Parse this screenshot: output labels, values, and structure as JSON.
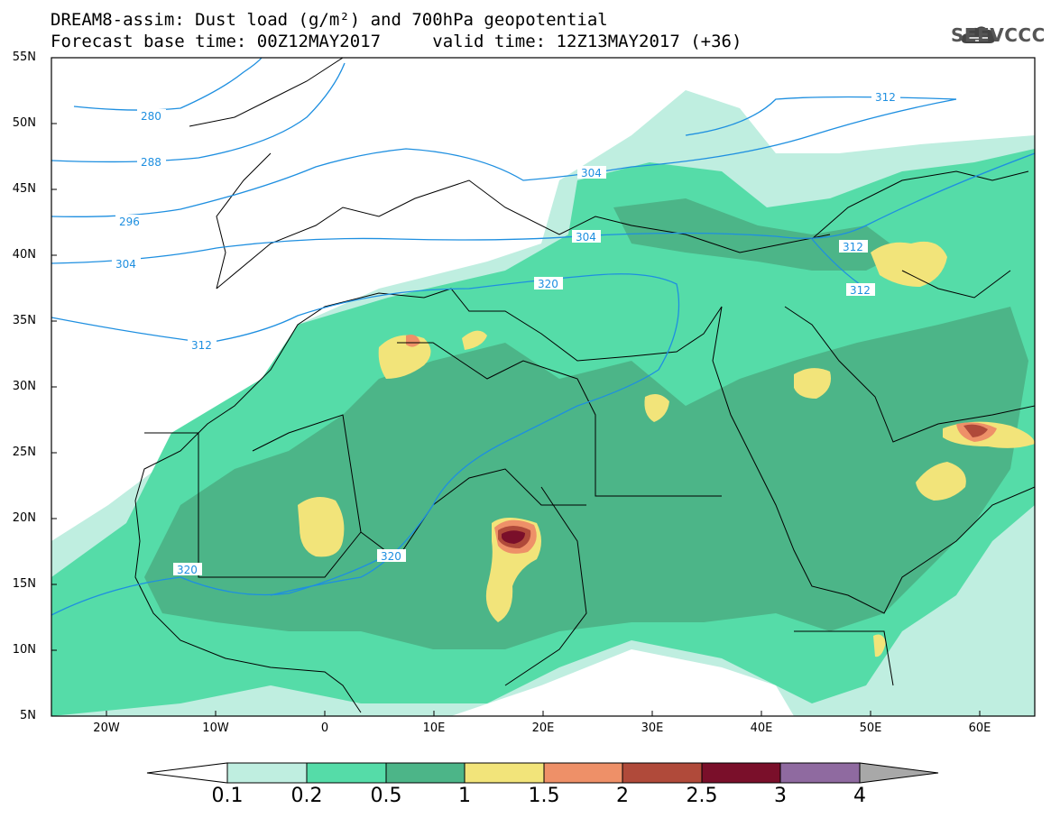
{
  "title": {
    "line1": "DREAM8-assim: Dust load (g/m²) and 700hPa geopotential",
    "line2_base": "Forecast base time: 00Z12MAY2017",
    "line2_valid": "valid time: 12Z13MAY2017 (+36)"
  },
  "logo": {
    "text": "SEEVCCC",
    "icon": "cloud-icon"
  },
  "map": {
    "extent": {
      "lon": [
        -25,
        65
      ],
      "lat": [
        5,
        55
      ]
    },
    "lat_labels": [
      "55N",
      "50N",
      "45N",
      "40N",
      "35N",
      "30N",
      "25N",
      "20N",
      "15N",
      "10N",
      "5N"
    ],
    "lon_labels": [
      "20W",
      "10W",
      "0",
      "10E",
      "20E",
      "30E",
      "40E",
      "50E",
      "60E"
    ],
    "contour_labels": [
      "280",
      "288",
      "296",
      "304",
      "312",
      "304",
      "304",
      "312",
      "312",
      "320",
      "320",
      "320",
      "312"
    ],
    "contour_color": "#1e8fe0"
  },
  "colorbar": {
    "labels": [
      "0.1",
      "0.2",
      "0.5",
      "1",
      "1.5",
      "2",
      "2.5",
      "3",
      "4"
    ],
    "colors": [
      "#bfeee0",
      "#55dca8",
      "#4cb588",
      "#f2e47a",
      "#ee9068",
      "#b04a3a",
      "#7a0f2a",
      "#8f6aa0",
      "#a8a8a8"
    ]
  },
  "colors": {
    "dust_0_1": "#bfeee0",
    "dust_0_2": "#55dca8",
    "dust_0_5": "#4cb588",
    "dust_1": "#f2e47a",
    "dust_1_5": "#ee9068",
    "dust_2": "#b04a3a",
    "dust_2_5": "#7a0f2a"
  }
}
